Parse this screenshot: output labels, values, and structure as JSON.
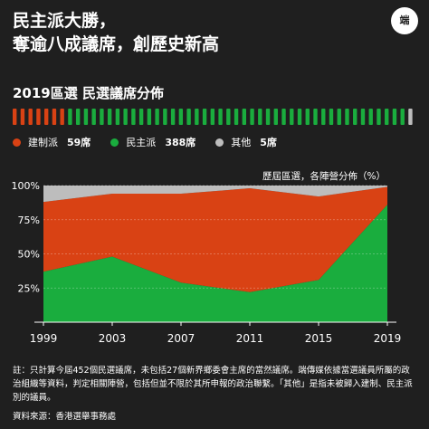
{
  "headline": {
    "line1": "民主派大勝，",
    "line2": "奪逾八成議席，創歷史新高"
  },
  "logo": {
    "text": "端"
  },
  "seat_chart": {
    "title": "2019區選 民選議席分佈",
    "legend": [
      {
        "label": "建制派",
        "value": "59席",
        "color": "#d94214",
        "count": 59
      },
      {
        "label": "民主派",
        "value": "388席",
        "color": "#1aad3e",
        "count": 388
      },
      {
        "label": "其他",
        "value": "5席",
        "color": "#bdbdbd",
        "count": 5
      }
    ]
  },
  "chart_data": {
    "type": "area",
    "title": "歷屆區選，各陣營分佈（%）",
    "x": [
      "1999",
      "2003",
      "2007",
      "2011",
      "2015",
      "2019"
    ],
    "yticks": [
      "100%",
      "75%",
      "50%",
      "25%"
    ],
    "ylim": [
      0,
      100
    ],
    "series": [
      {
        "name": "民主派",
        "color": "#1aad3e",
        "values": [
          37,
          48,
          29,
          22,
          31,
          86
        ]
      },
      {
        "name": "建制派",
        "color": "#d94214",
        "values": [
          51,
          46,
          65,
          76,
          61,
          13
        ]
      },
      {
        "name": "其他",
        "color": "#bdbdbd",
        "values": [
          12,
          6,
          6,
          2,
          8,
          1
        ]
      }
    ],
    "grid": true
  },
  "footer": {
    "note": "註：只計算今屆452個民選議席，未包括27個新界鄉委會主席的當然議席。端傳媒依據當選議員所屬的政治組織等資料，判定相關陣營，包括但並不限於其所申報的政治聯繫。「其他」是指未被歸入建制、民主派別的議員。",
    "source": "資料來源：香港選舉事務處"
  }
}
